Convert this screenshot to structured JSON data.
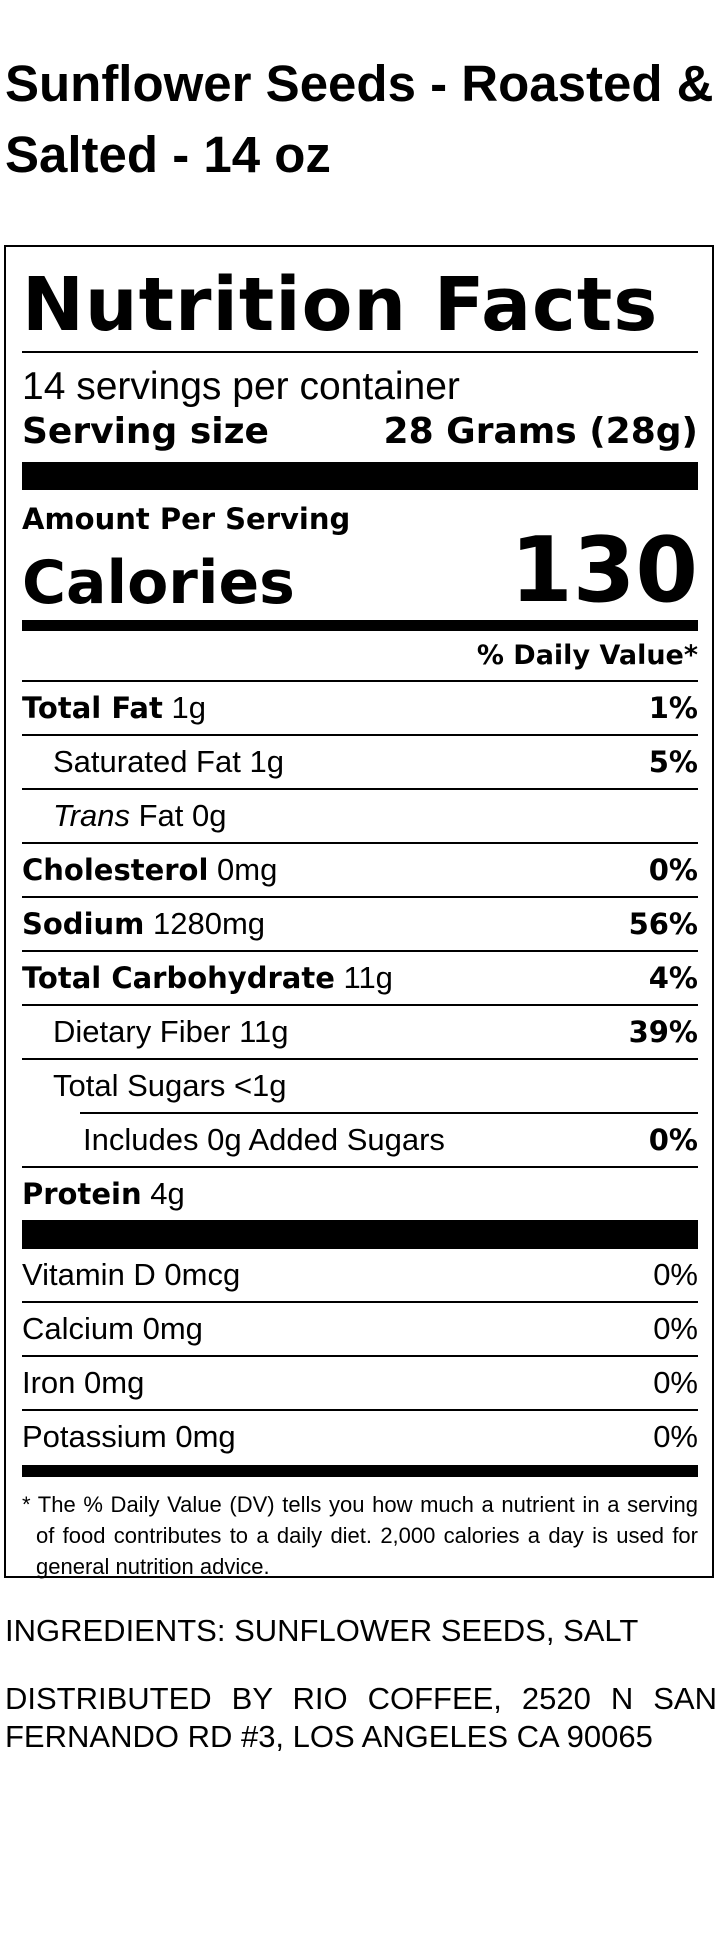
{
  "title": "Sunflower Seeds - Roasted & Salted - 14 oz",
  "label": {
    "heading": "Nutrition Facts",
    "servings": "14 servings per container",
    "serving_size_label": "Serving size",
    "serving_size_value": "28 Grams (28g)",
    "amount_per_serving": "Amount Per Serving",
    "calories_label": "Calories",
    "calories": 130,
    "daily_value_header": "% Daily Value*",
    "nutrients": [
      {
        "name": "Total Fat",
        "amount": "1g",
        "dv": "1%"
      },
      {
        "name": "Saturated Fat",
        "amount": "1g",
        "dv": "5%"
      },
      {
        "name_italic": "Trans",
        "name": "Fat",
        "amount": "0g"
      },
      {
        "name": "Cholesterol",
        "amount": "0mg",
        "dv": "0%"
      },
      {
        "name": "Sodium",
        "amount": "1280mg",
        "dv": "56%"
      },
      {
        "name": "Total Carbohydrate",
        "amount": "11g",
        "dv": "4%"
      },
      {
        "name": "Dietary Fiber",
        "amount": "11g",
        "dv": "39%"
      },
      {
        "name": "Total Sugars",
        "amount": "<1g"
      },
      {
        "name": "Includes 0g Added Sugars",
        "dv": "0%"
      },
      {
        "name": "Protein",
        "amount": "4g"
      }
    ],
    "vitamins": [
      {
        "name": "Vitamin D 0mcg",
        "dv": "0%"
      },
      {
        "name": "Calcium 0mg",
        "dv": "0%"
      },
      {
        "name": "Iron 0mg",
        "dv": "0%"
      },
      {
        "name": "Potassium 0mg",
        "dv": "0%"
      }
    ],
    "footnote": "* The % Daily Value (DV) tells you how much a nutrient in a serving of food contributes to a daily diet. 2,000 calories a day is used for general nutrition advice."
  },
  "ingredients": "INGREDIENTS: SUNFLOWER SEEDS, SALT",
  "distributed": "DISTRIBUTED BY RIO COFFEE, 2520 N SAN FERNANDO RD #3, LOS ANGELES CA 90065"
}
